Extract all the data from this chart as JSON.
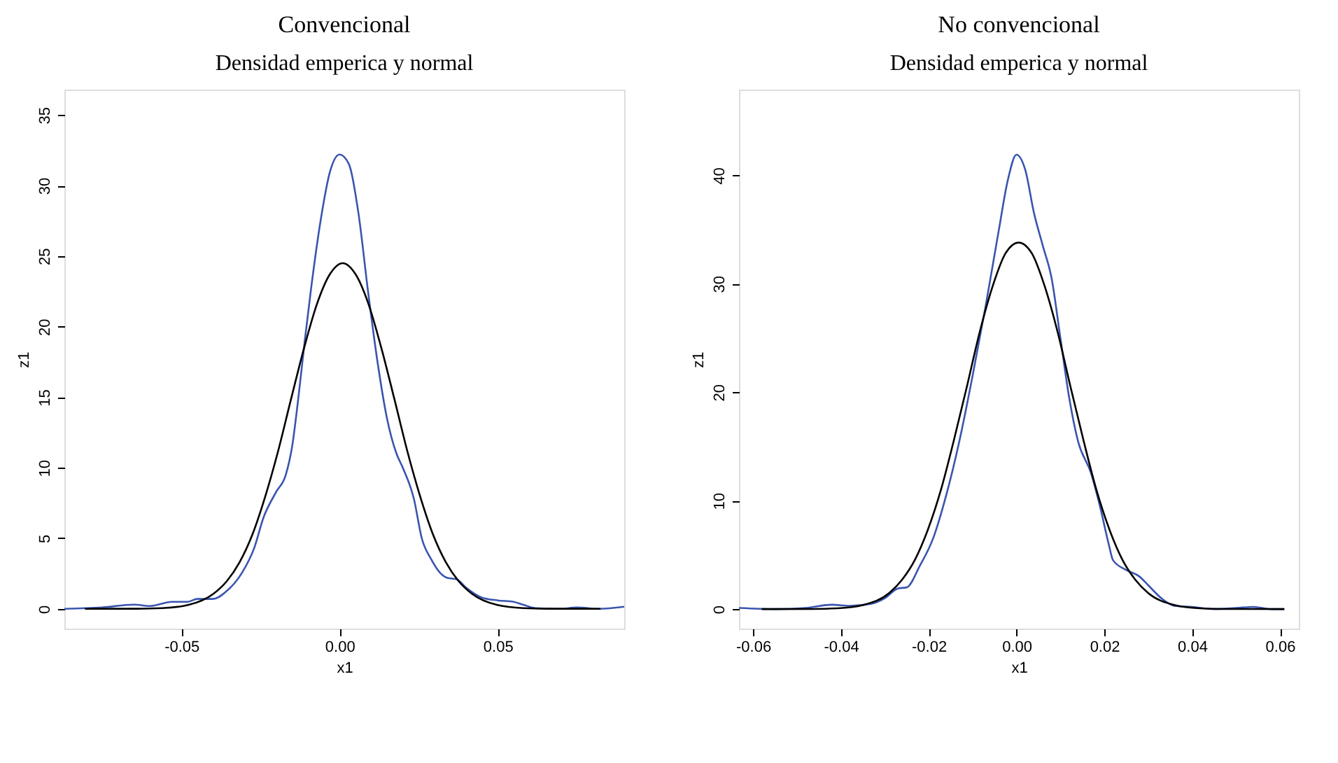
{
  "chart_data": [
    {
      "type": "line",
      "title": "Convencional",
      "subtitle": "Densidad emperica y normal",
      "xlabel": "x1",
      "ylabel": "z1",
      "xlim": [
        -0.087,
        0.09
      ],
      "ylim": [
        -1.4,
        36.8
      ],
      "xticks": [
        -0.05,
        {
          "value": 0,
          "label": "0.00"
        },
        0.05
      ],
      "yticks": [
        0,
        5,
        10,
        15,
        20,
        25,
        30,
        35
      ],
      "grid": false,
      "series": [
        {
          "color": "#3a55b0",
          "x": [
            -0.087,
            -0.075,
            -0.065,
            -0.06,
            -0.053,
            -0.048,
            -0.045,
            -0.04,
            -0.036,
            -0.031,
            -0.027,
            -0.024,
            -0.02,
            -0.017,
            -0.015,
            -0.013,
            -0.011,
            -0.009,
            -0.006,
            -0.003,
            0.0,
            0.003,
            0.006,
            0.009,
            0.012,
            0.015,
            0.018,
            0.02,
            0.0235,
            0.026,
            0.029,
            0.032,
            0.034,
            0.037,
            0.04,
            0.045,
            0.05,
            0.055,
            0.058,
            0.062,
            0.07,
            0.075,
            0.082,
            0.09
          ],
          "values": [
            0.0,
            0.1,
            0.3,
            0.2,
            0.5,
            0.5,
            0.7,
            0.7,
            1.2,
            2.5,
            4.3,
            6.5,
            8.3,
            9.5,
            11.5,
            15,
            19,
            22.7,
            27.5,
            31,
            32.2,
            31.5,
            28,
            22.5,
            17.5,
            13.5,
            11,
            10,
            7.8,
            5,
            3.5,
            2.5,
            2.2,
            2.1,
            1.5,
            0.8,
            0.6,
            0.5,
            0.3,
            0.05,
            0.0,
            0.1,
            0.0,
            0.15
          ]
        },
        {
          "color": "#000000",
          "x": [
            -0.0805,
            -0.0642,
            -0.0561,
            -0.0479,
            -0.0398,
            -0.0357,
            -0.0316,
            -0.0275,
            -0.0235,
            -0.0194,
            -0.0153,
            -0.0112,
            -0.00715,
            -0.0031,
            0.001,
            0.0051,
            0.00915,
            0.0132,
            0.0173,
            0.0214,
            0.0255,
            0.0295,
            0.0336,
            0.0377,
            0.0418,
            0.0499,
            0.0581,
            0.0662,
            0.0825
          ],
          "values": [
            0.0,
            0.01,
            0.05,
            0.27,
            1.08,
            1.95,
            3.31,
            5.3,
            7.96,
            11.2,
            14.9,
            18.5,
            21.6,
            23.7,
            24.5,
            23.7,
            21.6,
            18.5,
            14.9,
            11.2,
            7.96,
            5.3,
            3.31,
            1.95,
            1.08,
            0.27,
            0.05,
            0.01,
            0.0
          ]
        }
      ]
    },
    {
      "type": "line",
      "title": "No convencional",
      "subtitle": "Densidad emperica y normal",
      "xlabel": "x1",
      "ylabel": "z1",
      "xlim": [
        -0.0632,
        0.0643
      ],
      "ylim": [
        -1.8,
        47.9
      ],
      "xticks": [
        {
          "value": -0.06,
          "label": "-0.06"
        },
        {
          "value": -0.04,
          "label": "-0.04"
        },
        {
          "value": -0.02,
          "label": "-0.02"
        },
        {
          "value": 0,
          "label": "0.00"
        },
        0.02,
        0.04,
        0.06
      ],
      "yticks": [
        0,
        10,
        20,
        30,
        40
      ],
      "grid": false,
      "series": [
        {
          "color": "#3a55b0",
          "x": [
            -0.0632,
            -0.055,
            -0.048,
            -0.042,
            -0.038,
            -0.033,
            -0.03,
            -0.027,
            -0.025,
            -0.022,
            -0.019,
            -0.016,
            -0.013,
            -0.01,
            -0.007,
            -0.004,
            -0.002,
            0.0,
            0.002,
            0.004,
            0.006,
            0.008,
            0.01,
            0.012,
            0.014,
            0.017,
            0.019,
            0.021,
            0.022,
            0.025,
            0.028,
            0.03,
            0.033,
            0.036,
            0.04,
            0.045,
            0.05,
            0.054,
            0.058,
            0.061
          ],
          "values": [
            0.1,
            0.0,
            0.1,
            0.4,
            0.3,
            0.5,
            1.0,
            1.9,
            2.0,
            4.0,
            6.5,
            10.5,
            15.5,
            21.5,
            28,
            35,
            39.5,
            41.9,
            40.5,
            36.5,
            33.5,
            30.5,
            25,
            19.5,
            15.5,
            12.5,
            9.5,
            6.0,
            4.5,
            3.6,
            3.0,
            2.2,
            1.0,
            0.3,
            0.2,
            0.0,
            0.1,
            0.2,
            0.0,
            0.0
          ]
        },
        {
          "color": "#000000",
          "x": [
            -0.058,
            -0.0467,
            -0.0408,
            -0.0349,
            -0.029,
            -0.0261,
            -0.0231,
            -0.0202,
            -0.0172,
            -0.0143,
            -0.0113,
            -0.0084,
            -0.0054,
            -0.0025,
            0.0005,
            0.0035,
            0.0064,
            0.0094,
            0.0123,
            0.0153,
            0.0182,
            0.0212,
            0.0241,
            0.0271,
            0.03,
            0.0359,
            0.0418,
            0.0477,
            0.061
          ],
          "values": [
            0.0,
            0.01,
            0.07,
            0.38,
            1.48,
            2.69,
            4.57,
            7.3,
            11.0,
            15.5,
            20.5,
            25.5,
            29.8,
            32.8,
            33.8,
            32.8,
            29.8,
            25.5,
            20.5,
            15.5,
            11.0,
            7.3,
            4.57,
            2.69,
            1.48,
            0.38,
            0.07,
            0.01,
            0.0
          ]
        }
      ]
    }
  ]
}
